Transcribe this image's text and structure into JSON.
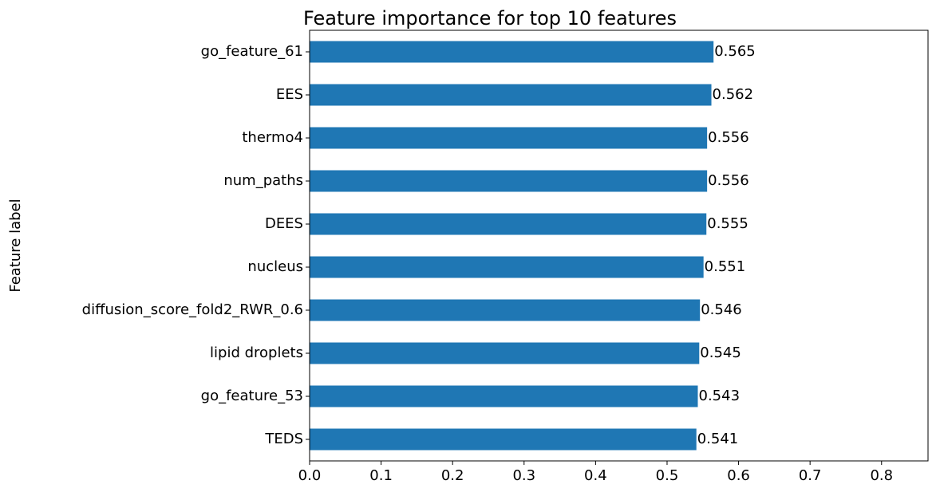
{
  "chart_data": {
    "type": "bar",
    "orientation": "horizontal",
    "title": "Feature importance for top 10 features",
    "xlabel": "",
    "ylabel": "Feature label",
    "categories": [
      "go_feature_61",
      "EES",
      "thermo4",
      "num_paths",
      "DEES",
      "nucleus",
      "diffusion_score_fold2_RWR_0.6",
      "lipid droplets",
      "go_feature_53",
      "TEDS"
    ],
    "values": [
      0.565,
      0.562,
      0.556,
      0.556,
      0.555,
      0.551,
      0.546,
      0.545,
      0.543,
      0.541
    ],
    "data_labels": [
      "0.565",
      "0.562",
      "0.556",
      "0.556",
      "0.555",
      "0.551",
      "0.546",
      "0.545",
      "0.543",
      "0.541"
    ],
    "xlim": [
      0,
      0.865
    ],
    "xticks": [
      0.0,
      0.1,
      0.2,
      0.3,
      0.4,
      0.5,
      0.6,
      0.7,
      0.8
    ],
    "xtick_labels": [
      "0.0",
      "0.1",
      "0.2",
      "0.3",
      "0.4",
      "0.5",
      "0.6",
      "0.7",
      "0.8"
    ],
    "grid": false,
    "legend": "none",
    "bar_color": "#1f77b4"
  }
}
